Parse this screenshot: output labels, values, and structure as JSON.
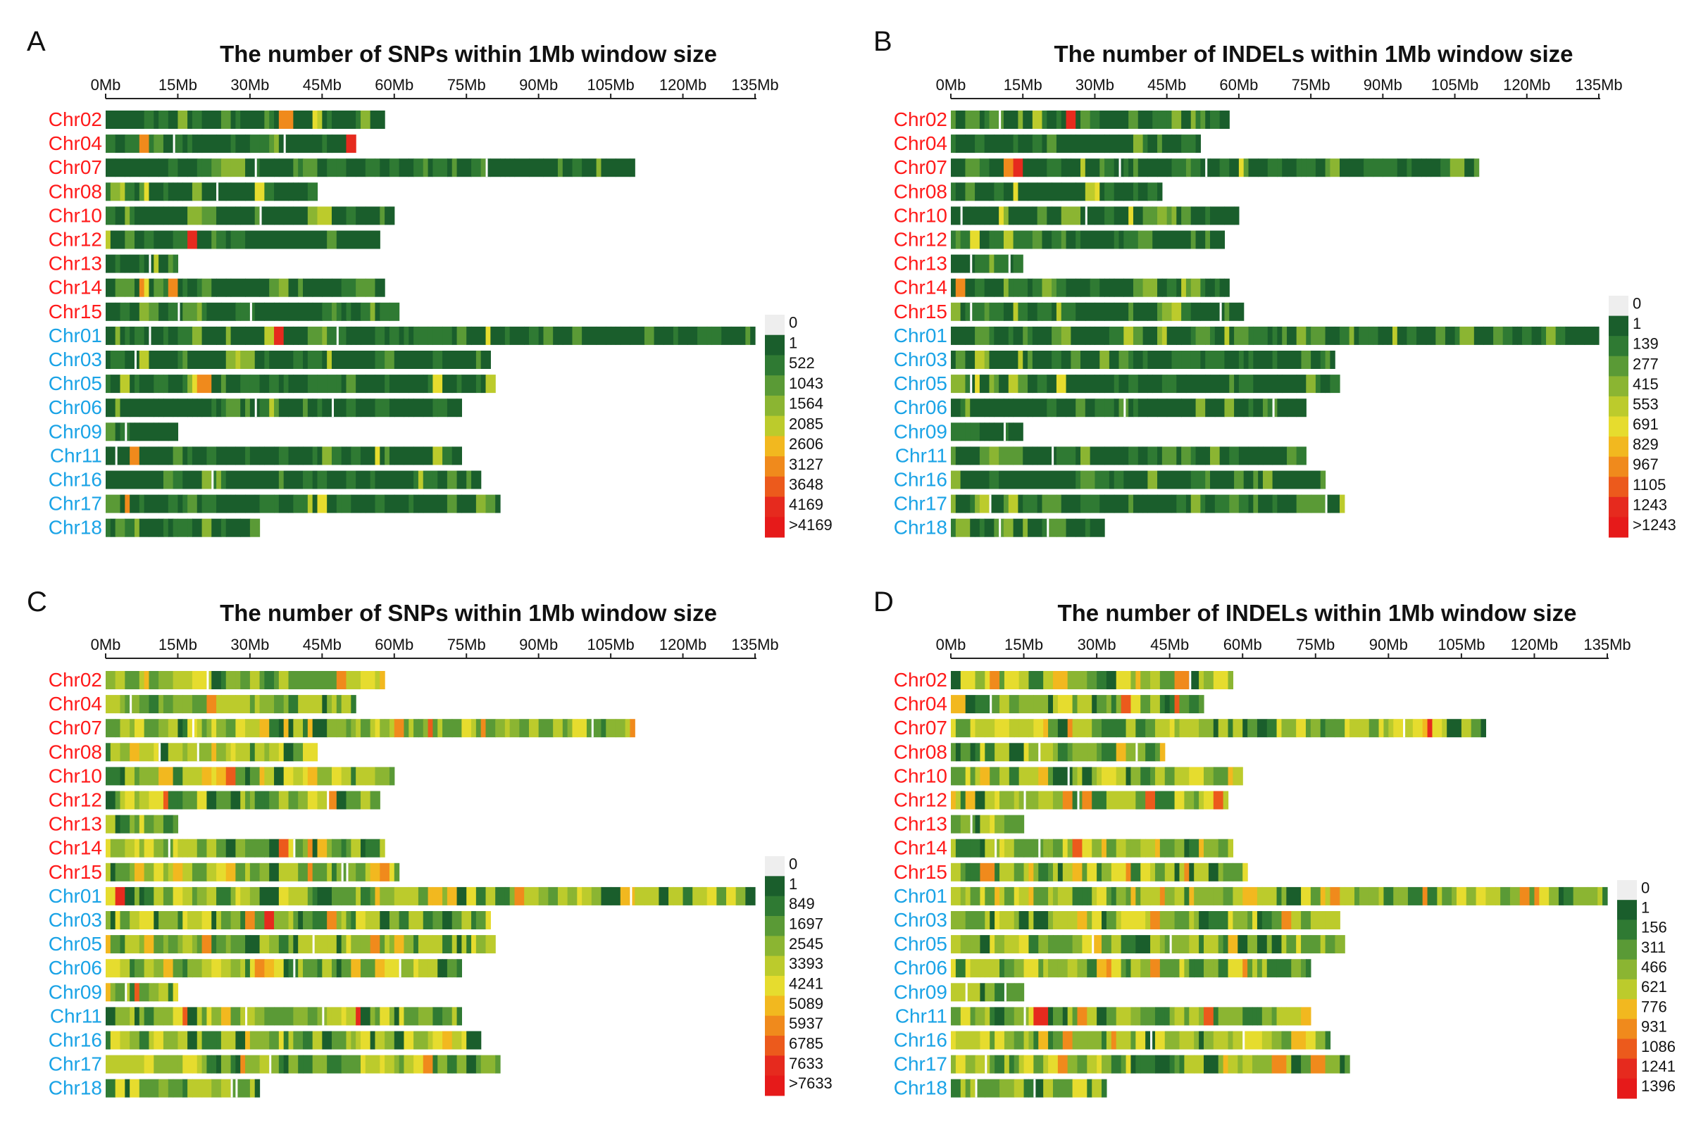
{
  "chart_data": [
    {
      "panel": "A",
      "type": "heatmap",
      "title": "The number of SNPs within 1Mb window size",
      "x_ticks": [
        "0Mb",
        "15Mb",
        "30Mb",
        "45Mb",
        "60Mb",
        "75Mb",
        "90Mb",
        "105Mb",
        "120Mb",
        "135Mb"
      ],
      "x_tick_values": [
        0,
        15,
        30,
        45,
        60,
        75,
        90,
        105,
        120,
        135
      ],
      "x_unit": "Mb",
      "chromosomes": [
        {
          "name": "Chr02",
          "group": "red",
          "length": 58
        },
        {
          "name": "Chr04",
          "group": "red",
          "length": 52
        },
        {
          "name": "Chr07",
          "group": "red",
          "length": 110
        },
        {
          "name": "Chr08",
          "group": "red",
          "length": 44
        },
        {
          "name": "Chr10",
          "group": "red",
          "length": 60
        },
        {
          "name": "Chr12",
          "group": "red",
          "length": 57
        },
        {
          "name": "Chr13",
          "group": "red",
          "length": 15
        },
        {
          "name": "Chr14",
          "group": "red",
          "length": 58
        },
        {
          "name": "Chr15",
          "group": "red",
          "length": 61
        },
        {
          "name": "Chr01",
          "group": "blue",
          "length": 135
        },
        {
          "name": "Chr03",
          "group": "blue",
          "length": 80
        },
        {
          "name": "Chr05",
          "group": "blue",
          "length": 81
        },
        {
          "name": "Chr06",
          "group": "blue",
          "length": 74
        },
        {
          "name": "Chr09",
          "group": "blue",
          "length": 15
        },
        {
          "name": "Chr11",
          "group": "blue",
          "length": 74
        },
        {
          "name": "Chr16",
          "group": "blue",
          "length": 78
        },
        {
          "name": "Chr17",
          "group": "blue",
          "length": 82
        },
        {
          "name": "Chr18",
          "group": "blue",
          "length": 32
        }
      ],
      "legend_labels": [
        "0",
        "1",
        "522",
        "1043",
        "1564",
        "2085",
        "2606",
        "3127",
        "3648",
        "4169",
        ">4169"
      ],
      "level": "low"
    },
    {
      "panel": "B",
      "type": "heatmap",
      "title": "The number of INDELs within 1Mb window size",
      "x_ticks": [
        "0Mb",
        "15Mb",
        "30Mb",
        "45Mb",
        "60Mb",
        "75Mb",
        "90Mb",
        "105Mb",
        "120Mb",
        "135Mb"
      ],
      "x_tick_values": [
        0,
        15,
        30,
        45,
        60,
        75,
        90,
        105,
        120,
        135
      ],
      "x_unit": "Mb",
      "chromosomes": [
        {
          "name": "Chr02",
          "group": "red",
          "length": 58
        },
        {
          "name": "Chr04",
          "group": "red",
          "length": 52
        },
        {
          "name": "Chr07",
          "group": "red",
          "length": 110
        },
        {
          "name": "Chr08",
          "group": "red",
          "length": 44
        },
        {
          "name": "Chr10",
          "group": "red",
          "length": 60
        },
        {
          "name": "Chr12",
          "group": "red",
          "length": 57
        },
        {
          "name": "Chr13",
          "group": "red",
          "length": 15
        },
        {
          "name": "Chr14",
          "group": "red",
          "length": 58
        },
        {
          "name": "Chr15",
          "group": "red",
          "length": 61
        },
        {
          "name": "Chr01",
          "group": "blue",
          "length": 135
        },
        {
          "name": "Chr03",
          "group": "blue",
          "length": 80
        },
        {
          "name": "Chr05",
          "group": "blue",
          "length": 81
        },
        {
          "name": "Chr06",
          "group": "blue",
          "length": 74
        },
        {
          "name": "Chr09",
          "group": "blue",
          "length": 15
        },
        {
          "name": "Chr11",
          "group": "blue",
          "length": 74
        },
        {
          "name": "Chr16",
          "group": "blue",
          "length": 78
        },
        {
          "name": "Chr17",
          "group": "blue",
          "length": 82
        },
        {
          "name": "Chr18",
          "group": "blue",
          "length": 32
        }
      ],
      "legend_labels": [
        "0",
        "1",
        "139",
        "277",
        "415",
        "553",
        "691",
        "829",
        "967",
        "1105",
        "1243",
        ">1243"
      ],
      "level": "low"
    },
    {
      "panel": "C",
      "type": "heatmap",
      "title": "The number of SNPs within 1Mb window size",
      "x_ticks": [
        "0Mb",
        "15Mb",
        "30Mb",
        "45Mb",
        "60Mb",
        "75Mb",
        "90Mb",
        "105Mb",
        "120Mb",
        "135Mb"
      ],
      "x_tick_values": [
        0,
        15,
        30,
        45,
        60,
        75,
        90,
        105,
        120,
        135
      ],
      "x_unit": "Mb",
      "chromosomes": [
        {
          "name": "Chr02",
          "group": "red",
          "length": 58
        },
        {
          "name": "Chr04",
          "group": "red",
          "length": 52
        },
        {
          "name": "Chr07",
          "group": "red",
          "length": 110
        },
        {
          "name": "Chr08",
          "group": "red",
          "length": 44
        },
        {
          "name": "Chr10",
          "group": "red",
          "length": 60
        },
        {
          "name": "Chr12",
          "group": "red",
          "length": 57
        },
        {
          "name": "Chr13",
          "group": "red",
          "length": 15
        },
        {
          "name": "Chr14",
          "group": "red",
          "length": 58
        },
        {
          "name": "Chr15",
          "group": "red",
          "length": 61
        },
        {
          "name": "Chr01",
          "group": "blue",
          "length": 135
        },
        {
          "name": "Chr03",
          "group": "blue",
          "length": 80
        },
        {
          "name": "Chr05",
          "group": "blue",
          "length": 81
        },
        {
          "name": "Chr06",
          "group": "blue",
          "length": 74
        },
        {
          "name": "Chr09",
          "group": "blue",
          "length": 15
        },
        {
          "name": "Chr11",
          "group": "blue",
          "length": 74
        },
        {
          "name": "Chr16",
          "group": "blue",
          "length": 78
        },
        {
          "name": "Chr17",
          "group": "blue",
          "length": 82
        },
        {
          "name": "Chr18",
          "group": "blue",
          "length": 32
        }
      ],
      "legend_labels": [
        "0",
        "1",
        "849",
        "1697",
        "2545",
        "3393",
        "4241",
        "5089",
        "5937",
        "6785",
        "7633",
        ">7633"
      ],
      "level": "high"
    },
    {
      "panel": "D",
      "type": "heatmap",
      "title": "The number of INDELs within 1Mb window size",
      "x_ticks": [
        "0Mb",
        "15Mb",
        "30Mb",
        "45Mb",
        "60Mb",
        "75Mb",
        "90Mb",
        "105Mb",
        "120Mb",
        "135Mb"
      ],
      "x_tick_values": [
        0,
        15,
        30,
        45,
        60,
        75,
        90,
        105,
        120,
        135
      ],
      "x_unit": "Mb",
      "chromosomes": [
        {
          "name": "Chr02",
          "group": "red",
          "length": 58
        },
        {
          "name": "Chr04",
          "group": "red",
          "length": 52
        },
        {
          "name": "Chr07",
          "group": "red",
          "length": 110
        },
        {
          "name": "Chr08",
          "group": "red",
          "length": 44
        },
        {
          "name": "Chr10",
          "group": "red",
          "length": 60
        },
        {
          "name": "Chr12",
          "group": "red",
          "length": 57
        },
        {
          "name": "Chr13",
          "group": "red",
          "length": 15
        },
        {
          "name": "Chr14",
          "group": "red",
          "length": 58
        },
        {
          "name": "Chr15",
          "group": "red",
          "length": 61
        },
        {
          "name": "Chr01",
          "group": "blue",
          "length": 135
        },
        {
          "name": "Chr03",
          "group": "blue",
          "length": 80
        },
        {
          "name": "Chr05",
          "group": "blue",
          "length": 81
        },
        {
          "name": "Chr06",
          "group": "blue",
          "length": 74
        },
        {
          "name": "Chr09",
          "group": "blue",
          "length": 15
        },
        {
          "name": "Chr11",
          "group": "blue",
          "length": 74
        },
        {
          "name": "Chr16",
          "group": "blue",
          "length": 78
        },
        {
          "name": "Chr17",
          "group": "blue",
          "length": 82
        },
        {
          "name": "Chr18",
          "group": "blue",
          "length": 32
        }
      ],
      "legend_labels": [
        "0",
        "1",
        "156",
        "311",
        "466",
        "621",
        "776",
        "931",
        "1086",
        "1241",
        "1396"
      ],
      "level": "high"
    }
  ],
  "colors": {
    "group_red": "#ff1a1a",
    "group_blue": "#1aa3e6",
    "legend_zero": "#eeeeee",
    "scale": [
      "#1a5e2c",
      "#2f7a33",
      "#5a9a36",
      "#8bb532",
      "#bccb2c",
      "#e6dc2e",
      "#f2b81f",
      "#f08a1c",
      "#ec5a1c",
      "#e62a1e",
      "#e61a1a"
    ]
  }
}
